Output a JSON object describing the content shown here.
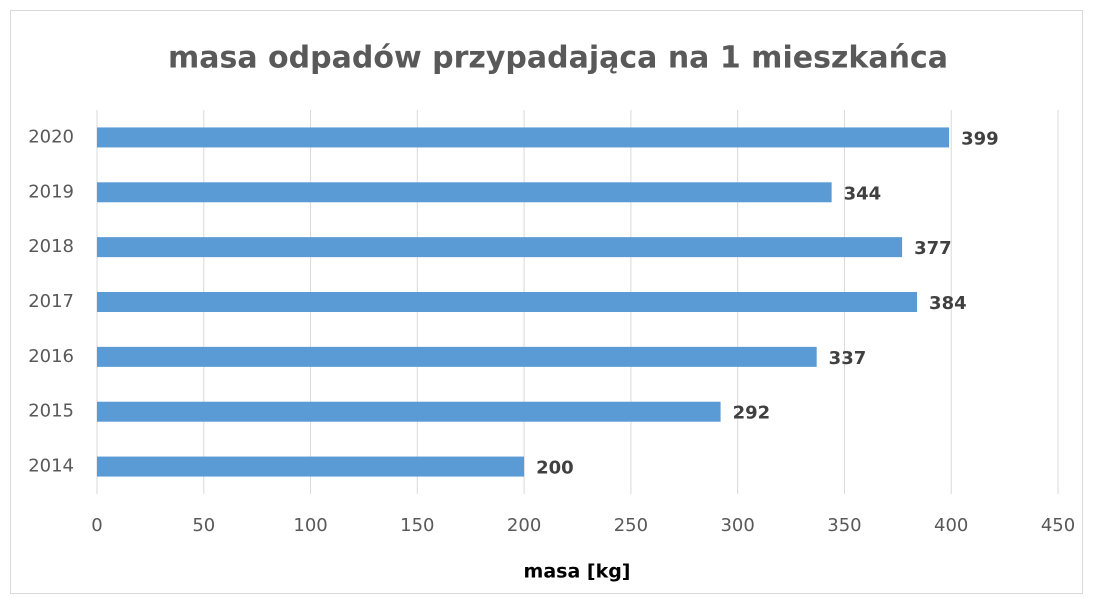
{
  "chart_data": {
    "type": "barh",
    "title": "masa odpadów przypadająca na 1 mieszkańca",
    "categories": [
      "2014",
      "2015",
      "2016",
      "2017",
      "2018",
      "2019",
      "2020"
    ],
    "values": [
      200,
      292,
      337,
      384,
      377,
      344,
      399
    ],
    "color": "#5b9bd5",
    "xlabel": "masa [kg]",
    "xlim": [
      0,
      450
    ],
    "xticks": [
      0,
      50,
      100,
      150,
      200,
      250,
      300,
      350,
      400,
      450
    ],
    "grid": true
  }
}
